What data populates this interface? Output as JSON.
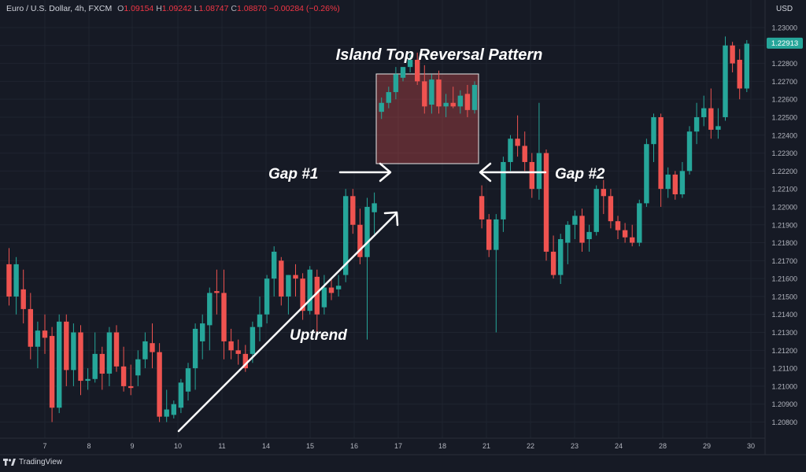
{
  "header": {
    "symbol": "Euro / U.S. Dollar, 4h, FXCM",
    "open_label": "O",
    "open": "1.09154",
    "high_label": "H",
    "high": "1.09242",
    "low_label": "L",
    "low": "1.08747",
    "close_label": "C",
    "close": "1.08870",
    "change": "−0.00284 (−0.26%)"
  },
  "currency_label": "USD",
  "last_price_label": "1.22913",
  "brand": "TradingView",
  "colors": {
    "up": "#26a69a",
    "down": "#ef5350",
    "background": "#161a25",
    "highlight": "#ef5350"
  },
  "chart_data": {
    "type": "candlestick",
    "title": "Island Top Reversal Pattern",
    "annotations": [
      "Island Top Reversal Pattern",
      "Gap #1",
      "Gap #2",
      "Uptrend"
    ],
    "x_tick_labels": [
      "7",
      "8",
      "9",
      "10",
      "11",
      "14",
      "15",
      "16",
      "17",
      "18",
      "21",
      "22",
      "23",
      "24",
      "28",
      "29",
      "30"
    ],
    "y_tick_labels": [
      "1.23000",
      "1.22900",
      "1.22800",
      "1.22700",
      "1.22600",
      "1.22500",
      "1.22400",
      "1.22300",
      "1.22200",
      "1.22100",
      "1.22000",
      "1.21900",
      "1.21800",
      "1.21700",
      "1.21600",
      "1.21500",
      "1.21400",
      "1.21300",
      "1.21200",
      "1.21100",
      "1.21000",
      "1.20900",
      "1.20800"
    ],
    "ylim": [
      1.2058,
      1.2327
    ],
    "grid": true,
    "last_price": 1.22913,
    "candles": [
      {
        "o": 1.2168,
        "h": 1.2177,
        "l": 1.2145,
        "c": 1.215
      },
      {
        "o": 1.215,
        "h": 1.2172,
        "l": 1.214,
        "c": 1.2168
      },
      {
        "o": 1.2154,
        "h": 1.2165,
        "l": 1.2135,
        "c": 1.2143
      },
      {
        "o": 1.2143,
        "h": 1.2152,
        "l": 1.2115,
        "c": 1.2122
      },
      {
        "o": 1.2122,
        "h": 1.2136,
        "l": 1.211,
        "c": 1.2131
      },
      {
        "o": 1.2131,
        "h": 1.214,
        "l": 1.2118,
        "c": 1.2127
      },
      {
        "o": 1.2128,
        "h": 1.2133,
        "l": 1.208,
        "c": 1.2088
      },
      {
        "o": 1.2088,
        "h": 1.214,
        "l": 1.2085,
        "c": 1.2136
      },
      {
        "o": 1.2136,
        "h": 1.214,
        "l": 1.21,
        "c": 1.2109
      },
      {
        "o": 1.2109,
        "h": 1.2135,
        "l": 1.21,
        "c": 1.213
      },
      {
        "o": 1.213,
        "h": 1.2134,
        "l": 1.2095,
        "c": 1.2103
      },
      {
        "o": 1.2103,
        "h": 1.211,
        "l": 1.2098,
        "c": 1.2104
      },
      {
        "o": 1.2104,
        "h": 1.213,
        "l": 1.2102,
        "c": 1.2118
      },
      {
        "o": 1.2118,
        "h": 1.2122,
        "l": 1.2098,
        "c": 1.2107
      },
      {
        "o": 1.2107,
        "h": 1.2133,
        "l": 1.21,
        "c": 1.213
      },
      {
        "o": 1.213,
        "h": 1.2134,
        "l": 1.2108,
        "c": 1.2111
      },
      {
        "o": 1.2111,
        "h": 1.2122,
        "l": 1.2097,
        "c": 1.21
      },
      {
        "o": 1.21,
        "h": 1.2112,
        "l": 1.2095,
        "c": 1.2099
      },
      {
        "o": 1.2106,
        "h": 1.212,
        "l": 1.21,
        "c": 1.2115
      },
      {
        "o": 1.2115,
        "h": 1.213,
        "l": 1.211,
        "c": 1.2125
      },
      {
        "o": 1.2124,
        "h": 1.2135,
        "l": 1.211,
        "c": 1.2119
      },
      {
        "o": 1.2119,
        "h": 1.2124,
        "l": 1.208,
        "c": 1.2083
      },
      {
        "o": 1.2083,
        "h": 1.2098,
        "l": 1.208,
        "c": 1.2087
      },
      {
        "o": 1.2084,
        "h": 1.2092,
        "l": 1.2082,
        "c": 1.209
      },
      {
        "o": 1.2088,
        "h": 1.2104,
        "l": 1.2085,
        "c": 1.2102
      },
      {
        "o": 1.2097,
        "h": 1.2113,
        "l": 1.2092,
        "c": 1.211
      },
      {
        "o": 1.211,
        "h": 1.2135,
        "l": 1.2098,
        "c": 1.2132
      },
      {
        "o": 1.2125,
        "h": 1.214,
        "l": 1.2115,
        "c": 1.2135
      },
      {
        "o": 1.2134,
        "h": 1.2155,
        "l": 1.212,
        "c": 1.2152
      },
      {
        "o": 1.2153,
        "h": 1.2165,
        "l": 1.214,
        "c": 1.2152
      },
      {
        "o": 1.2152,
        "h": 1.2165,
        "l": 1.2115,
        "c": 1.2125
      },
      {
        "o": 1.2125,
        "h": 1.2132,
        "l": 1.2115,
        "c": 1.212
      },
      {
        "o": 1.212,
        "h": 1.2126,
        "l": 1.2112,
        "c": 1.2118
      },
      {
        "o": 1.2118,
        "h": 1.2123,
        "l": 1.2108,
        "c": 1.211
      },
      {
        "o": 1.2118,
        "h": 1.2136,
        "l": 1.2113,
        "c": 1.2133
      },
      {
        "o": 1.2133,
        "h": 1.215,
        "l": 1.2125,
        "c": 1.214
      },
      {
        "o": 1.214,
        "h": 1.2162,
        "l": 1.2135,
        "c": 1.216
      },
      {
        "o": 1.216,
        "h": 1.2178,
        "l": 1.215,
        "c": 1.2175
      },
      {
        "o": 1.217,
        "h": 1.2172,
        "l": 1.2145,
        "c": 1.215
      },
      {
        "o": 1.215,
        "h": 1.2162,
        "l": 1.214,
        "c": 1.2162
      },
      {
        "o": 1.2162,
        "h": 1.2168,
        "l": 1.215,
        "c": 1.216
      },
      {
        "o": 1.216,
        "h": 1.2163,
        "l": 1.2137,
        "c": 1.2142
      },
      {
        "o": 1.2142,
        "h": 1.2167,
        "l": 1.214,
        "c": 1.2165
      },
      {
        "o": 1.2161,
        "h": 1.2165,
        "l": 1.2128,
        "c": 1.214
      },
      {
        "o": 1.2144,
        "h": 1.2162,
        "l": 1.214,
        "c": 1.2155
      },
      {
        "o": 1.2155,
        "h": 1.216,
        "l": 1.2148,
        "c": 1.2152
      },
      {
        "o": 1.2154,
        "h": 1.2162,
        "l": 1.215,
        "c": 1.2156
      },
      {
        "o": 1.2162,
        "h": 1.221,
        "l": 1.2158,
        "c": 1.2206
      },
      {
        "o": 1.2206,
        "h": 1.221,
        "l": 1.2185,
        "c": 1.219
      },
      {
        "o": 1.219,
        "h": 1.2199,
        "l": 1.2168,
        "c": 1.2172
      },
      {
        "o": 1.2172,
        "h": 1.2205,
        "l": 1.2126,
        "c": 1.22
      },
      {
        "o": 1.2197,
        "h": 1.2208,
        "l": 1.2185,
        "c": 1.2202
      },
      {
        "o": 1.2253,
        "h": 1.2261,
        "l": 1.2249,
        "c": 1.2258
      },
      {
        "o": 1.2258,
        "h": 1.2267,
        "l": 1.2255,
        "c": 1.2264
      },
      {
        "o": 1.2264,
        "h": 1.2278,
        "l": 1.226,
        "c": 1.2274
      },
      {
        "o": 1.2272,
        "h": 1.2278,
        "l": 1.227,
        "c": 1.2278
      },
      {
        "o": 1.2278,
        "h": 1.2285,
        "l": 1.2275,
        "c": 1.2282
      },
      {
        "o": 1.2282,
        "h": 1.2286,
        "l": 1.2268,
        "c": 1.227
      },
      {
        "o": 1.227,
        "h": 1.2279,
        "l": 1.2252,
        "c": 1.2256
      },
      {
        "o": 1.2257,
        "h": 1.2274,
        "l": 1.2252,
        "c": 1.2271
      },
      {
        "o": 1.2271,
        "h": 1.2276,
        "l": 1.2252,
        "c": 1.2256
      },
      {
        "o": 1.2256,
        "h": 1.2263,
        "l": 1.225,
        "c": 1.2258
      },
      {
        "o": 1.2258,
        "h": 1.2267,
        "l": 1.2255,
        "c": 1.2256
      },
      {
        "o": 1.2256,
        "h": 1.2265,
        "l": 1.2252,
        "c": 1.2262
      },
      {
        "o": 1.2263,
        "h": 1.2268,
        "l": 1.225,
        "c": 1.2254
      },
      {
        "o": 1.2254,
        "h": 1.227,
        "l": 1.2252,
        "c": 1.2268
      },
      {
        "o": 1.2206,
        "h": 1.2212,
        "l": 1.2188,
        "c": 1.2193
      },
      {
        "o": 1.2193,
        "h": 1.2196,
        "l": 1.2172,
        "c": 1.2176
      },
      {
        "o": 1.2176,
        "h": 1.2196,
        "l": 1.213,
        "c": 1.2193
      },
      {
        "o": 1.2193,
        "h": 1.2228,
        "l": 1.2186,
        "c": 1.2225
      },
      {
        "o": 1.2225,
        "h": 1.224,
        "l": 1.222,
        "c": 1.2238
      },
      {
        "o": 1.2238,
        "h": 1.2251,
        "l": 1.2228,
        "c": 1.2234
      },
      {
        "o": 1.2234,
        "h": 1.2242,
        "l": 1.222,
        "c": 1.2225
      },
      {
        "o": 1.2225,
        "h": 1.223,
        "l": 1.2205,
        "c": 1.221
      },
      {
        "o": 1.221,
        "h": 1.2258,
        "l": 1.2204,
        "c": 1.223
      },
      {
        "o": 1.223,
        "h": 1.2232,
        "l": 1.217,
        "c": 1.2175
      },
      {
        "o": 1.2175,
        "h": 1.2184,
        "l": 1.216,
        "c": 1.2162
      },
      {
        "o": 1.2162,
        "h": 1.2185,
        "l": 1.2157,
        "c": 1.2182
      },
      {
        "o": 1.218,
        "h": 1.2192,
        "l": 1.2168,
        "c": 1.219
      },
      {
        "o": 1.219,
        "h": 1.2198,
        "l": 1.2182,
        "c": 1.2195
      },
      {
        "o": 1.2195,
        "h": 1.2199,
        "l": 1.2175,
        "c": 1.218
      },
      {
        "o": 1.2182,
        "h": 1.219,
        "l": 1.2175,
        "c": 1.2186
      },
      {
        "o": 1.2186,
        "h": 1.2212,
        "l": 1.2184,
        "c": 1.221
      },
      {
        "o": 1.221,
        "h": 1.2215,
        "l": 1.2196,
        "c": 1.2206
      },
      {
        "o": 1.2206,
        "h": 1.221,
        "l": 1.2188,
        "c": 1.2192
      },
      {
        "o": 1.2192,
        "h": 1.2195,
        "l": 1.2182,
        "c": 1.2187
      },
      {
        "o": 1.2187,
        "h": 1.2191,
        "l": 1.218,
        "c": 1.2183
      },
      {
        "o": 1.2183,
        "h": 1.219,
        "l": 1.2178,
        "c": 1.218
      },
      {
        "o": 1.218,
        "h": 1.2204,
        "l": 1.2178,
        "c": 1.2202
      },
      {
        "o": 1.2202,
        "h": 1.2238,
        "l": 1.22,
        "c": 1.2235
      },
      {
        "o": 1.2235,
        "h": 1.2252,
        "l": 1.2225,
        "c": 1.225
      },
      {
        "o": 1.225,
        "h": 1.2252,
        "l": 1.22,
        "c": 1.221
      },
      {
        "o": 1.221,
        "h": 1.2222,
        "l": 1.2205,
        "c": 1.2218
      },
      {
        "o": 1.2218,
        "h": 1.222,
        "l": 1.2204,
        "c": 1.2207
      },
      {
        "o": 1.2207,
        "h": 1.2225,
        "l": 1.2205,
        "c": 1.222
      },
      {
        "o": 1.222,
        "h": 1.2245,
        "l": 1.2218,
        "c": 1.2242
      },
      {
        "o": 1.2242,
        "h": 1.2258,
        "l": 1.2235,
        "c": 1.225
      },
      {
        "o": 1.225,
        "h": 1.2262,
        "l": 1.2245,
        "c": 1.2255
      },
      {
        "o": 1.2255,
        "h": 1.2266,
        "l": 1.2238,
        "c": 1.2243
      },
      {
        "o": 1.2243,
        "h": 1.2255,
        "l": 1.2238,
        "c": 1.2245
      },
      {
        "o": 1.225,
        "h": 1.2295,
        "l": 1.2248,
        "c": 1.229
      },
      {
        "o": 1.229,
        "h": 1.2292,
        "l": 1.2275,
        "c": 1.228
      },
      {
        "o": 1.2282,
        "h": 1.2288,
        "l": 1.226,
        "c": 1.2266
      },
      {
        "o": 1.2266,
        "h": 1.2293,
        "l": 1.2264,
        "c": 1.2291
      }
    ]
  }
}
